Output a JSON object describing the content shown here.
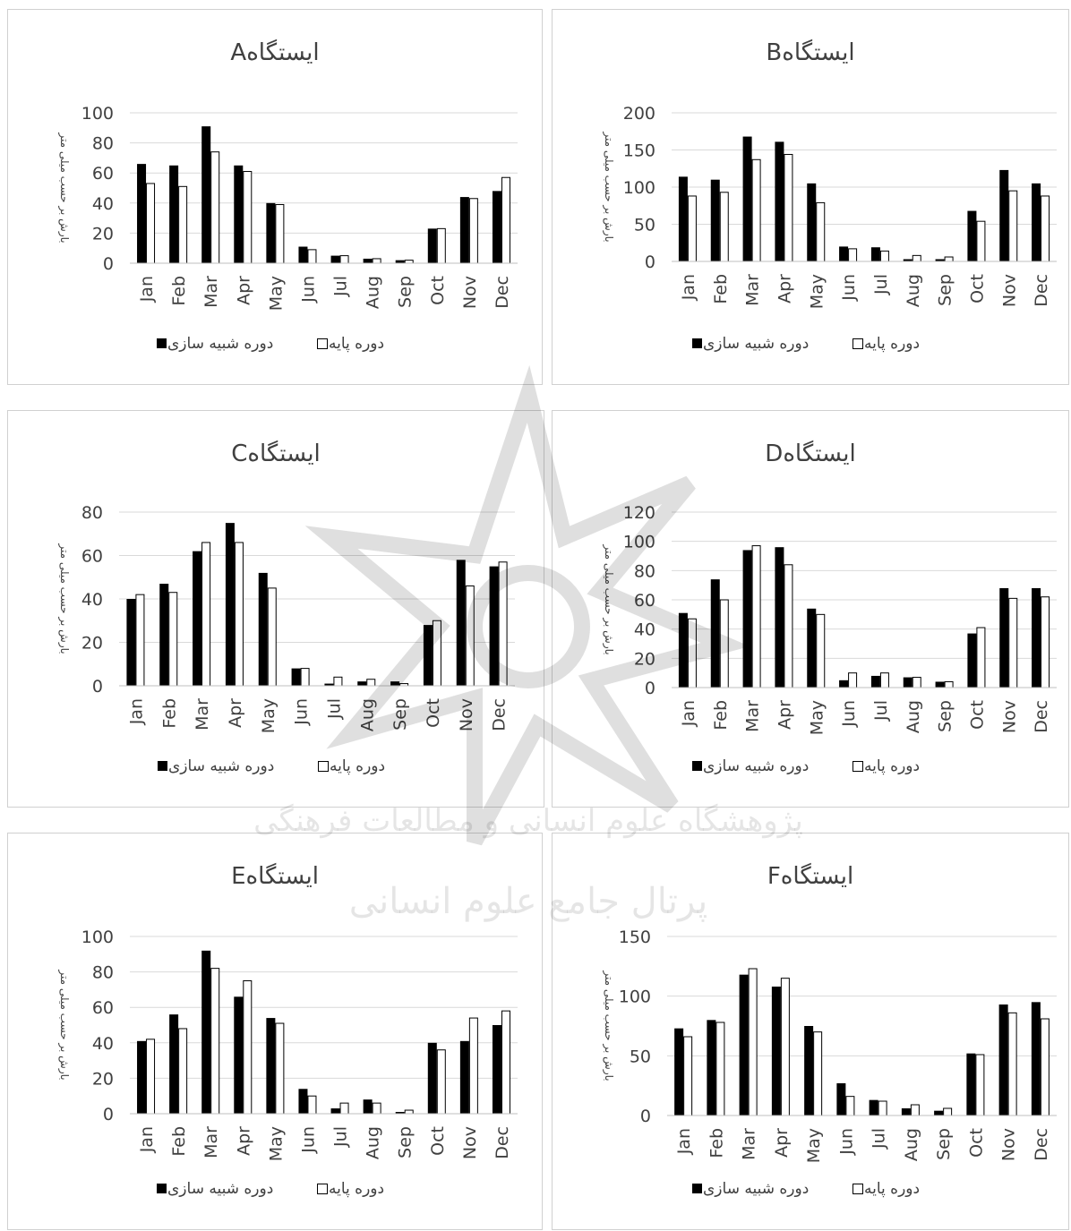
{
  "legend": {
    "simulated": "دوره شبیه سازی",
    "base": "دوره پایه"
  },
  "watermark_text": {
    "line1": "پژوهشگاه علوم انسانی و مطالعات فرهنگی",
    "line2": "پرتال جامع علوم انسانی"
  },
  "colors": {
    "simulated": "#000000",
    "base": "#ffffff",
    "grid": "#d9d9d9",
    "frame": "#d0d0d0",
    "text": "#404040"
  },
  "chart_data": [
    {
      "type": "bar",
      "title": "ایستگاهA",
      "ylabel": "بارش بر حسب میلی متر",
      "categories": [
        "Jan",
        "Feb",
        "Mar",
        "Apr",
        "May",
        "Jun",
        "Jul",
        "Aug",
        "Sep",
        "Oct",
        "Nov",
        "Dec"
      ],
      "ylim": [
        0,
        100
      ],
      "yticks": [
        0,
        20,
        40,
        60,
        80,
        100
      ],
      "grid": true,
      "legend": "bottom",
      "series": [
        {
          "name": "دوره شبیه سازی",
          "values": [
            66,
            65,
            91,
            65,
            40,
            11,
            5,
            3,
            2,
            23,
            44,
            48
          ]
        },
        {
          "name": "دوره پایه",
          "values": [
            53,
            51,
            74,
            61,
            39,
            9,
            5,
            3,
            2,
            23,
            43,
            57
          ]
        }
      ]
    },
    {
      "type": "bar",
      "title": "ایستگاهB",
      "ylabel": "بارش بر حسب میلی متر",
      "categories": [
        "Jan",
        "Feb",
        "Mar",
        "Apr",
        "May",
        "Jun",
        "Jul",
        "Aug",
        "Sep",
        "Oct",
        "Nov",
        "Dec"
      ],
      "ylim": [
        0,
        200
      ],
      "yticks": [
        0,
        50,
        100,
        150,
        200
      ],
      "grid": true,
      "legend": "bottom",
      "series": [
        {
          "name": "دوره شبیه سازی",
          "values": [
            114,
            110,
            168,
            161,
            105,
            20,
            19,
            3,
            3,
            68,
            123,
            105
          ]
        },
        {
          "name": "دوره پایه",
          "values": [
            88,
            93,
            137,
            144,
            79,
            17,
            14,
            8,
            6,
            54,
            95,
            88
          ]
        }
      ]
    },
    {
      "type": "bar",
      "title": "ایستگاهC",
      "ylabel": "بارش بر حسب میلی متر",
      "categories": [
        "Jan",
        "Feb",
        "Mar",
        "Apr",
        "May",
        "Jun",
        "Jul",
        "Aug",
        "Sep",
        "Oct",
        "Nov",
        "Dec"
      ],
      "ylim": [
        0,
        80
      ],
      "yticks": [
        0,
        20,
        40,
        60,
        80
      ],
      "grid": true,
      "legend": "bottom",
      "series": [
        {
          "name": "دوره شبیه سازی",
          "values": [
            40,
            47,
            62,
            75,
            52,
            8,
            1,
            2,
            2,
            28,
            58,
            55
          ]
        },
        {
          "name": "دوره پایه",
          "values": [
            42,
            43,
            66,
            66,
            45,
            8,
            4,
            3,
            1,
            30,
            46,
            57
          ]
        }
      ]
    },
    {
      "type": "bar",
      "title": "ایستگاهD",
      "ylabel": "بارش بر حسب میلی متر",
      "categories": [
        "Jan",
        "Feb",
        "Mar",
        "Apr",
        "May",
        "Jun",
        "Jul",
        "Aug",
        "Sep",
        "Oct",
        "Nov",
        "Dec"
      ],
      "ylim": [
        0,
        120
      ],
      "yticks": [
        0,
        20,
        40,
        60,
        80,
        100,
        120
      ],
      "grid": true,
      "legend": "bottom",
      "series": [
        {
          "name": "دوره شبیه سازی",
          "values": [
            51,
            74,
            94,
            96,
            54,
            5,
            8,
            7,
            4,
            37,
            68,
            68
          ]
        },
        {
          "name": "دوره پایه",
          "values": [
            47,
            60,
            97,
            84,
            50,
            10,
            10,
            7,
            4,
            41,
            61,
            62
          ]
        }
      ]
    },
    {
      "type": "bar",
      "title": "ایستگاهE",
      "ylabel": "بارش بر حسب میلی متر",
      "categories": [
        "Jan",
        "Feb",
        "Mar",
        "Apr",
        "May",
        "Jun",
        "Jul",
        "Aug",
        "Sep",
        "Oct",
        "Nov",
        "Dec"
      ],
      "ylim": [
        0,
        100
      ],
      "yticks": [
        0,
        20,
        40,
        60,
        80,
        100
      ],
      "grid": true,
      "legend": "bottom",
      "series": [
        {
          "name": "دوره شبیه سازی",
          "values": [
            41,
            56,
            92,
            66,
            54,
            14,
            3,
            8,
            1,
            40,
            41,
            50
          ]
        },
        {
          "name": "دوره پایه",
          "values": [
            42,
            48,
            82,
            75,
            51,
            10,
            6,
            6,
            2,
            36,
            54,
            58
          ]
        }
      ]
    },
    {
      "type": "bar",
      "title": "ایستگاهF",
      "ylabel": "بارش بر حسب میلی متر",
      "categories": [
        "Jan",
        "Feb",
        "Mar",
        "Apr",
        "May",
        "Jun",
        "Jul",
        "Aug",
        "Sep",
        "Oct",
        "Nov",
        "Dec"
      ],
      "ylim": [
        0,
        150
      ],
      "yticks": [
        0,
        50,
        100,
        150
      ],
      "grid": true,
      "legend": "bottom",
      "series": [
        {
          "name": "دوره شبیه سازی",
          "values": [
            73,
            80,
            118,
            108,
            75,
            27,
            13,
            6,
            4,
            52,
            93,
            95
          ]
        },
        {
          "name": "دوره پایه",
          "values": [
            66,
            78,
            123,
            115,
            70,
            16,
            12,
            9,
            6,
            51,
            86,
            81
          ]
        }
      ]
    }
  ]
}
